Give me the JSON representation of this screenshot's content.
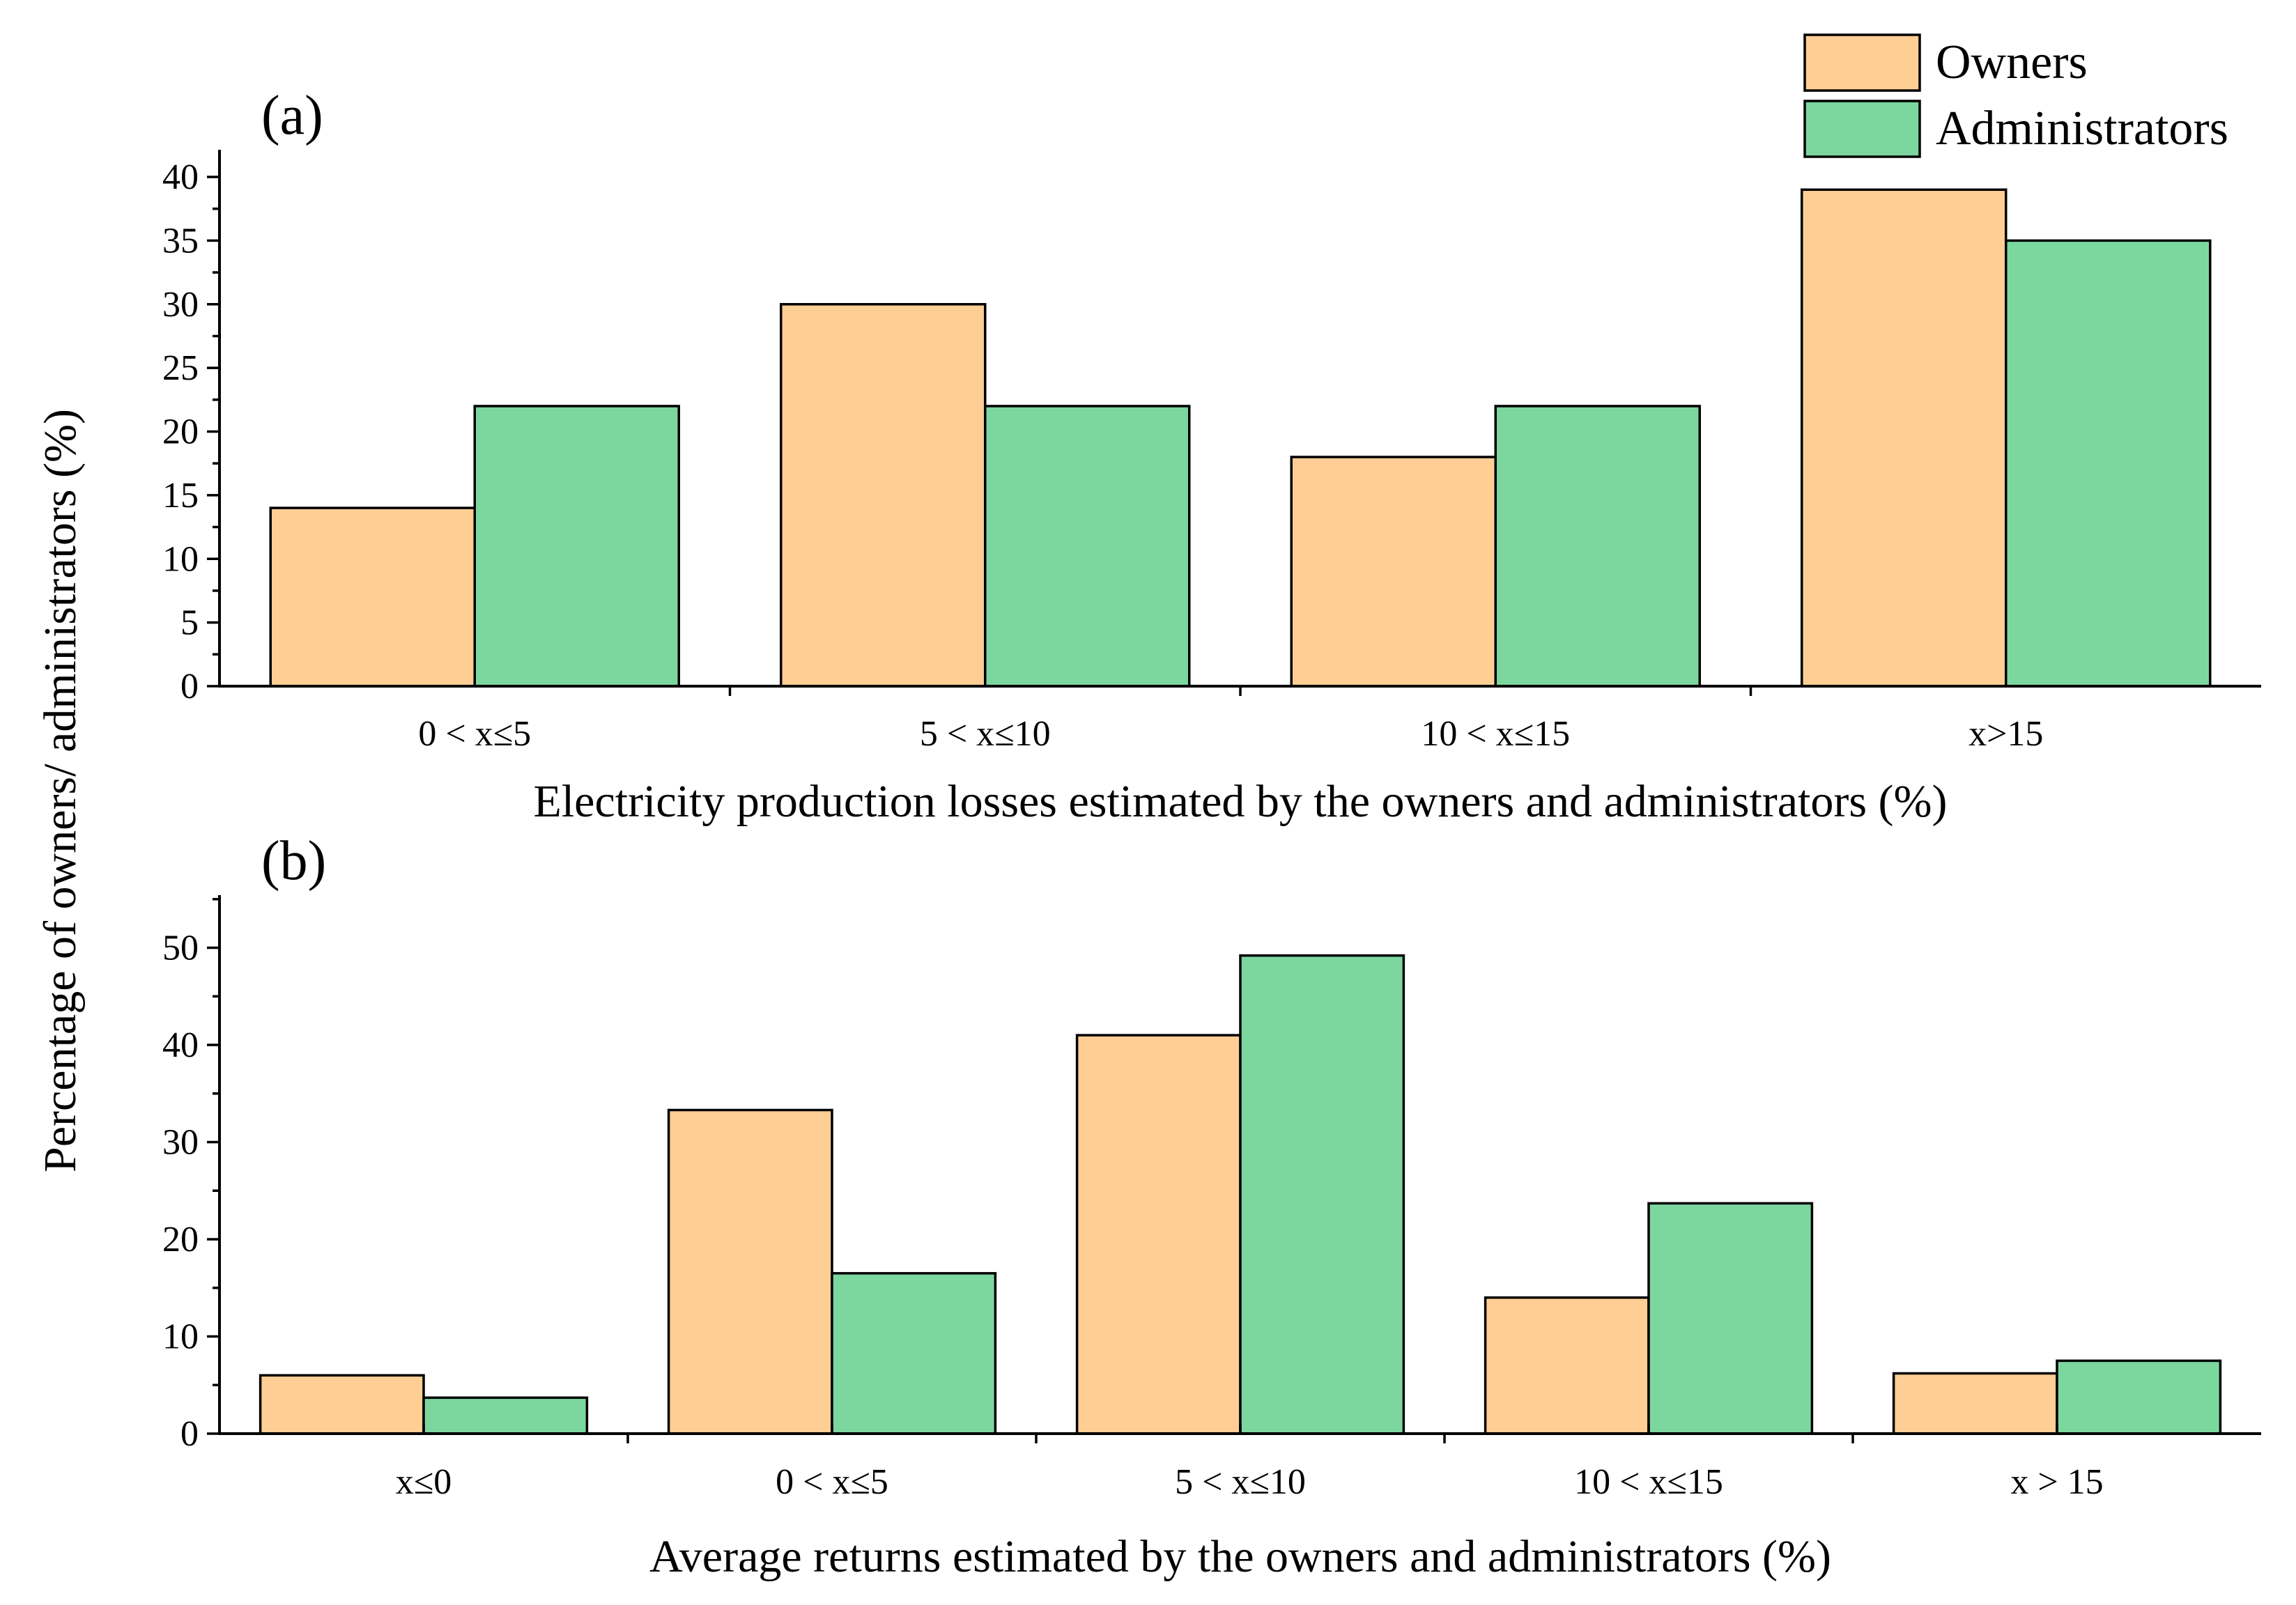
{
  "figure": {
    "y_axis_label": "Percentage of  owners/ administrators (%)",
    "legend": [
      {
        "name": "Owners",
        "color": "#FECE94"
      },
      {
        "name": "Administrators",
        "color": "#7CD79E"
      }
    ]
  },
  "chart_data": [
    {
      "type": "bar",
      "panel_label": "(a)",
      "title": "",
      "xlabel": "Electricity production losses estimated by the owners and administrators (%)",
      "ylabel": "Percentage of  owners/ administrators (%)",
      "categories": [
        "0 < x≤5",
        "5 < x≤10",
        "10 < x≤15",
        "x>15"
      ],
      "series": [
        {
          "name": "Owners",
          "values": [
            14,
            30,
            18,
            39
          ]
        },
        {
          "name": "Administrators",
          "values": [
            22,
            22,
            22,
            35
          ]
        }
      ],
      "ylim": [
        0,
        42
      ],
      "yticks": [
        0,
        5,
        10,
        15,
        20,
        25,
        30,
        35,
        40
      ],
      "legend_position": "top-right",
      "grid": false
    },
    {
      "type": "bar",
      "panel_label": "(b)",
      "title": "",
      "xlabel": "Average returns estimated by the owners and administrators (%)",
      "ylabel": "Percentage of  owners/ administrators (%)",
      "categories": [
        "x≤0",
        "0 < x≤5",
        "5 < x≤10",
        "10 < x≤15",
        "x > 15"
      ],
      "series": [
        {
          "name": "Owners",
          "values": [
            6,
            33.3,
            41,
            14,
            6.2
          ]
        },
        {
          "name": "Administrators",
          "values": [
            3.7,
            16.5,
            49.2,
            23.7,
            7.5
          ]
        }
      ],
      "ylim": [
        0,
        55
      ],
      "yticks": [
        0,
        10,
        20,
        30,
        40,
        50
      ],
      "grid": false
    }
  ]
}
